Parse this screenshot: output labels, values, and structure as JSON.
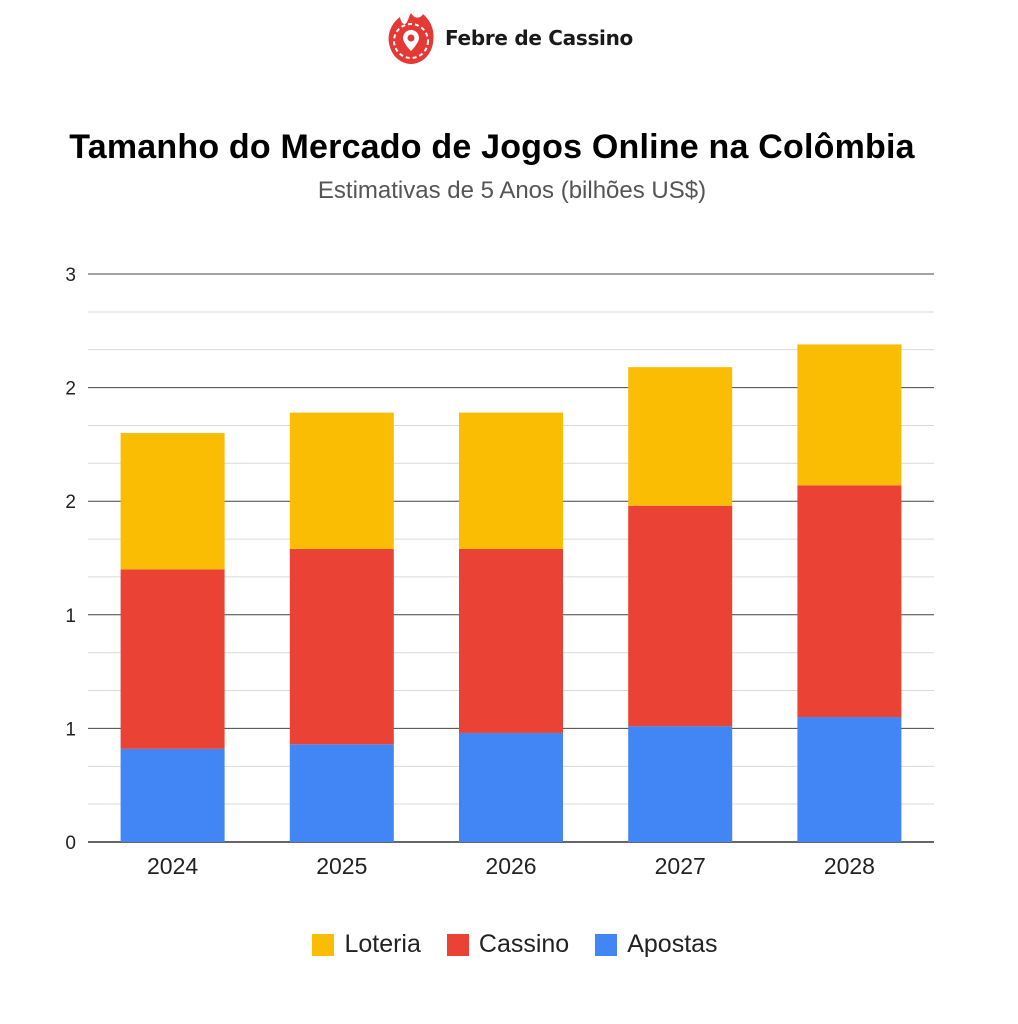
{
  "brand": {
    "name": "Febre de Cassino",
    "logo_icon": "flame-location-pin-icon"
  },
  "chart_data": {
    "type": "bar",
    "stacked": true,
    "title": "Tamanho do Mercado de Jogos Online na Colômbia",
    "subtitle": "Estimativas de 5 Anos (bilhões US$)",
    "categories": [
      "2024",
      "2025",
      "2026",
      "2027",
      "2028"
    ],
    "series": [
      {
        "name": "Apostas",
        "color": "#4285F4",
        "values": [
          0.41,
          0.43,
          0.48,
          0.51,
          0.55
        ]
      },
      {
        "name": "Cassino",
        "color": "#EA4335",
        "values": [
          0.79,
          0.86,
          0.81,
          0.97,
          1.02
        ]
      },
      {
        "name": "Loteria",
        "color": "#FBBC04",
        "values": [
          0.6,
          0.6,
          0.6,
          0.61,
          0.62
        ]
      }
    ],
    "ylim": [
      0,
      2.5
    ],
    "major_ticks": [
      0,
      0.5,
      1.0,
      1.5,
      2.0,
      2.5
    ],
    "tick_labels": [
      "0",
      "1",
      "1",
      "2",
      "2",
      "3"
    ],
    "minor_ticks": [
      0.167,
      0.333,
      0.667,
      0.833,
      1.167,
      1.333,
      1.667,
      1.833,
      2.167,
      2.333
    ],
    "legend_order": [
      "Loteria",
      "Cassino",
      "Apostas"
    ],
    "legend_position": "bottom",
    "xlabel": "",
    "ylabel": ""
  }
}
